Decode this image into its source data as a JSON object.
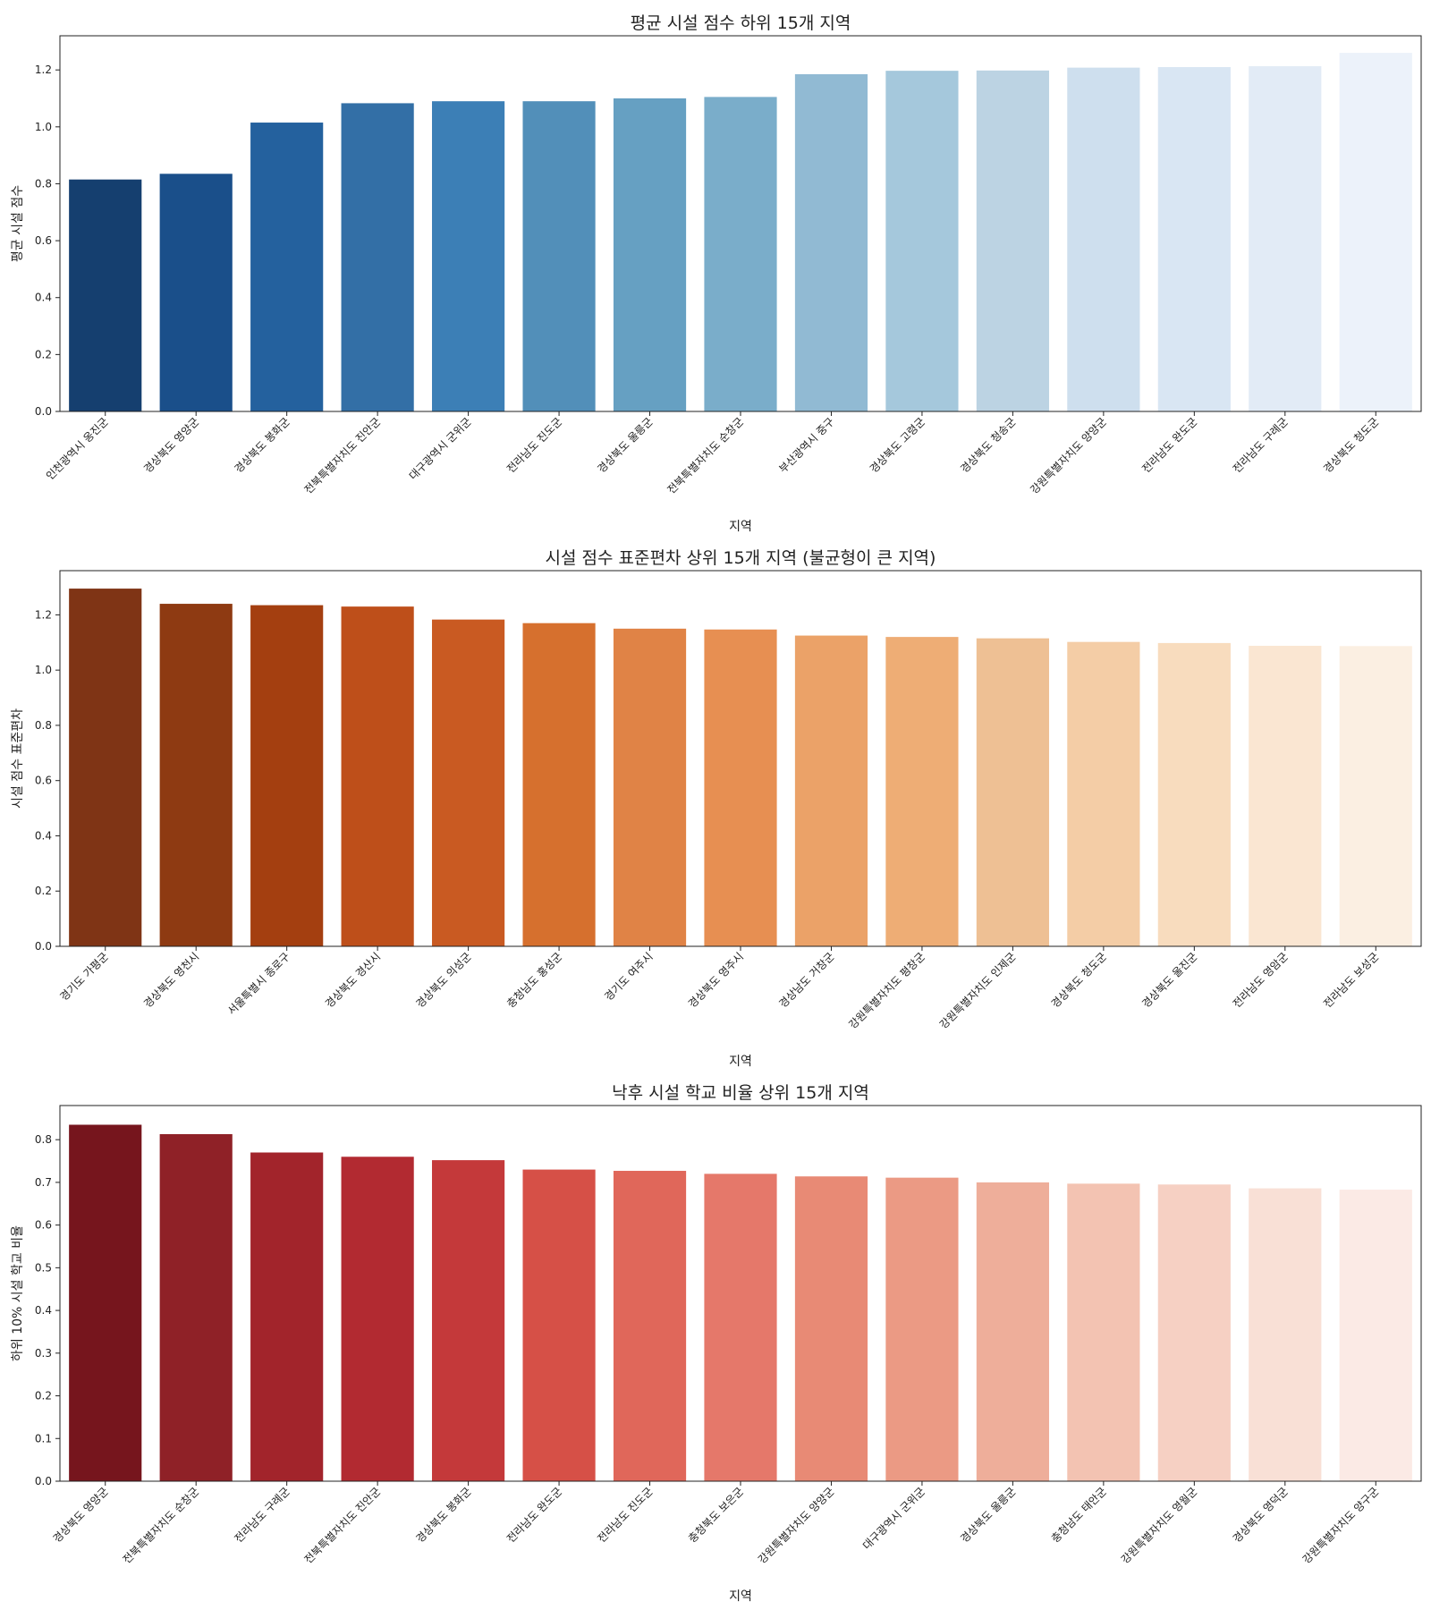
{
  "chart_data": [
    {
      "type": "bar",
      "title": "평균 시설 점수 하위 15개 지역",
      "xlabel": "지역",
      "ylabel": "평균 시설 점수",
      "ylim": [
        0,
        1.32
      ],
      "yticks": [
        0.0,
        0.2,
        0.4,
        0.6,
        0.8,
        1.0,
        1.2
      ],
      "ytick_labels": [
        "0.0",
        "0.2",
        "0.4",
        "0.6",
        "0.8",
        "1.0",
        "1.2"
      ],
      "grid": false,
      "categories": [
        "인천광역시 옹진군",
        "경상북도 영양군",
        "경상북도 봉화군",
        "전북특별자치도 진안군",
        "대구광역시 군위군",
        "전라남도 진도군",
        "경상북도 울릉군",
        "전북특별자치도 순창군",
        "부산광역시 중구",
        "경상북도 고령군",
        "경상북도 청송군",
        "강원특별자치도 양양군",
        "전라남도 완도군",
        "전라남도 구례군",
        "경상북도 청도군"
      ],
      "values": [
        0.815,
        0.835,
        1.015,
        1.083,
        1.09,
        1.09,
        1.1,
        1.105,
        1.185,
        1.197,
        1.198,
        1.208,
        1.21,
        1.213,
        1.26
      ],
      "colors": [
        "#153f6f",
        "#1a4f8a",
        "#24619e",
        "#336fa6",
        "#3c7fb6",
        "#528fb9",
        "#66a0c2",
        "#7aadca",
        "#91bad3",
        "#a5c8dc",
        "#bcd3e3",
        "#cedfee",
        "#d9e6f3",
        "#e2ebf6",
        "#ecf2fa"
      ]
    },
    {
      "type": "bar",
      "title": "시설 점수 표준편차 상위 15개 지역 (불균형이 큰 지역)",
      "xlabel": "지역",
      "ylabel": "시설 점수 표준편차",
      "ylim": [
        0,
        1.36
      ],
      "yticks": [
        0.0,
        0.2,
        0.4,
        0.6,
        0.8,
        1.0,
        1.2
      ],
      "ytick_labels": [
        "0.0",
        "0.2",
        "0.4",
        "0.6",
        "0.8",
        "1.0",
        "1.2"
      ],
      "grid": false,
      "categories": [
        "경기도 가평군",
        "경상북도 영천시",
        "서울특별시 종로구",
        "경상북도 경산시",
        "경상북도 의성군",
        "충청남도 홍성군",
        "경기도 여주시",
        "경상북도 영주시",
        "경상남도 거창군",
        "강원특별자치도 평창군",
        "강원특별자치도 인제군",
        "경상북도 청도군",
        "경상북도 울진군",
        "전라남도 영암군",
        "전라남도 보성군"
      ],
      "values": [
        1.295,
        1.24,
        1.235,
        1.23,
        1.183,
        1.17,
        1.15,
        1.147,
        1.125,
        1.12,
        1.115,
        1.102,
        1.098,
        1.088,
        1.087
      ],
      "colors": [
        "#7f3415",
        "#8e3a12",
        "#a43f10",
        "#be4f1a",
        "#c95a22",
        "#d6702e",
        "#e08346",
        "#e78f52",
        "#eba268",
        "#eead75",
        "#eec094",
        "#f4cda6",
        "#f8dcbe",
        "#fae6d2",
        "#fbefe2"
      ]
    },
    {
      "type": "bar",
      "title": "낙후 시설 학교 비율 상위 15개 지역",
      "xlabel": "지역",
      "ylabel": "하위 10% 시설 학교 비율",
      "ylim": [
        0,
        0.88
      ],
      "yticks": [
        0.0,
        0.1,
        0.2,
        0.3,
        0.4,
        0.5,
        0.6,
        0.7,
        0.8
      ],
      "ytick_labels": [
        "0.0",
        "0.1",
        "0.2",
        "0.3",
        "0.4",
        "0.5",
        "0.6",
        "0.7",
        "0.8"
      ],
      "grid": false,
      "categories": [
        "경상북도 영양군",
        "전북특별자치도 순창군",
        "전라남도 구례군",
        "전북특별자치도 진안군",
        "경상북도 봉화군",
        "전라남도 완도군",
        "전라남도 진도군",
        "충청북도 보은군",
        "강원특별자치도 양양군",
        "대구광역시 군위군",
        "경상북도 울릉군",
        "충청남도 태안군",
        "강원특별자치도 영월군",
        "경상북도 영덕군",
        "강원특별자치도 양구군"
      ],
      "values": [
        0.835,
        0.813,
        0.77,
        0.76,
        0.752,
        0.73,
        0.727,
        0.72,
        0.714,
        0.711,
        0.7,
        0.697,
        0.695,
        0.686,
        0.683
      ],
      "colors": [
        "#76151d",
        "#8f2127",
        "#a2242b",
        "#b22a31",
        "#c4393a",
        "#d65047",
        "#e0675a",
        "#e5786a",
        "#e88a75",
        "#eb9a84",
        "#eeae9a",
        "#f3c3b2",
        "#f6d0c3",
        "#f9e0d6",
        "#fbeae5"
      ]
    }
  ]
}
